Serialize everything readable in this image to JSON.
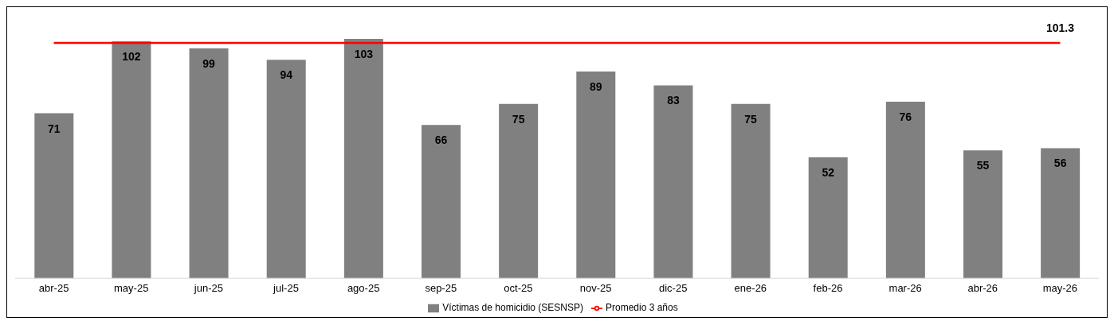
{
  "chart_data": {
    "type": "bar",
    "categories": [
      "abr-25",
      "may-25",
      "jun-25",
      "jul-25",
      "ago-25",
      "sep-25",
      "oct-25",
      "nov-25",
      "dic-25",
      "ene-26",
      "feb-26",
      "mar-26",
      "abr-26",
      "may-26"
    ],
    "series": [
      {
        "name": "Víctimas de homicidio (SESNSP)",
        "color": "#808080",
        "values": [
          71,
          102,
          99,
          94,
          103,
          66,
          75,
          89,
          83,
          75,
          52,
          76,
          55,
          56
        ]
      },
      {
        "name": "Promedio 3 años",
        "type": "line",
        "color": "#ff0000",
        "values": [
          101.3,
          101.3,
          101.3,
          101.3,
          101.3,
          101.3,
          101.3,
          101.3,
          101.3,
          101.3,
          101.3,
          101.3,
          101.3,
          101.3
        ],
        "value_labels": [
          null,
          null,
          null,
          null,
          null,
          null,
          null,
          null,
          null,
          null,
          null,
          null,
          null,
          "101.3"
        ]
      }
    ],
    "data_labels": true,
    "legend": "bottom"
  }
}
